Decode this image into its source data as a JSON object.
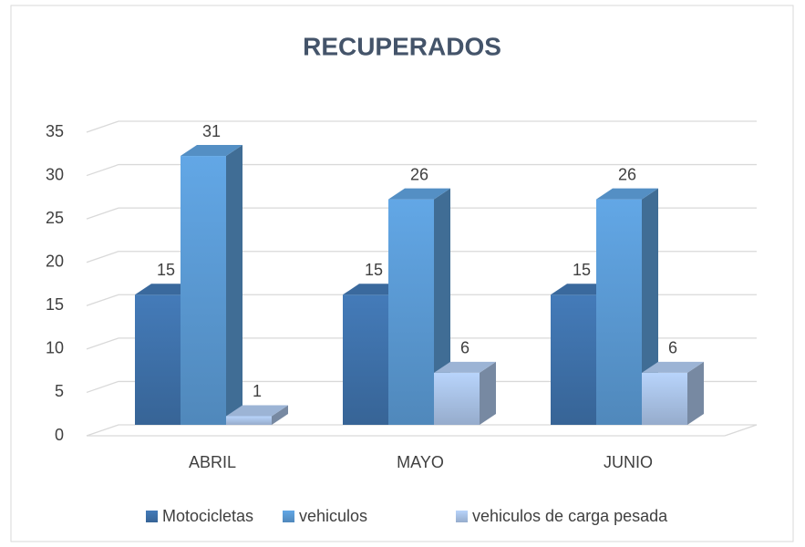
{
  "chart_data": {
    "type": "bar3d",
    "title": "RECUPERADOS",
    "categories": [
      "ABRIL",
      "MAYO",
      "JUNIO"
    ],
    "series": [
      {
        "name": "Motocicletas",
        "color": "#3f72ab",
        "values": [
          15,
          15,
          15
        ]
      },
      {
        "name": "vehiculos",
        "color": "#5b9bd5",
        "values": [
          31,
          26,
          26
        ]
      },
      {
        "name": "vehiculos de carga pesada",
        "color": "#aac4e8",
        "values": [
          1,
          6,
          6
        ]
      }
    ],
    "ylim": [
      0,
      35
    ],
    "yticks": [
      0,
      5,
      10,
      15,
      20,
      25,
      30,
      35
    ],
    "grid": true,
    "legend": "bottom"
  }
}
